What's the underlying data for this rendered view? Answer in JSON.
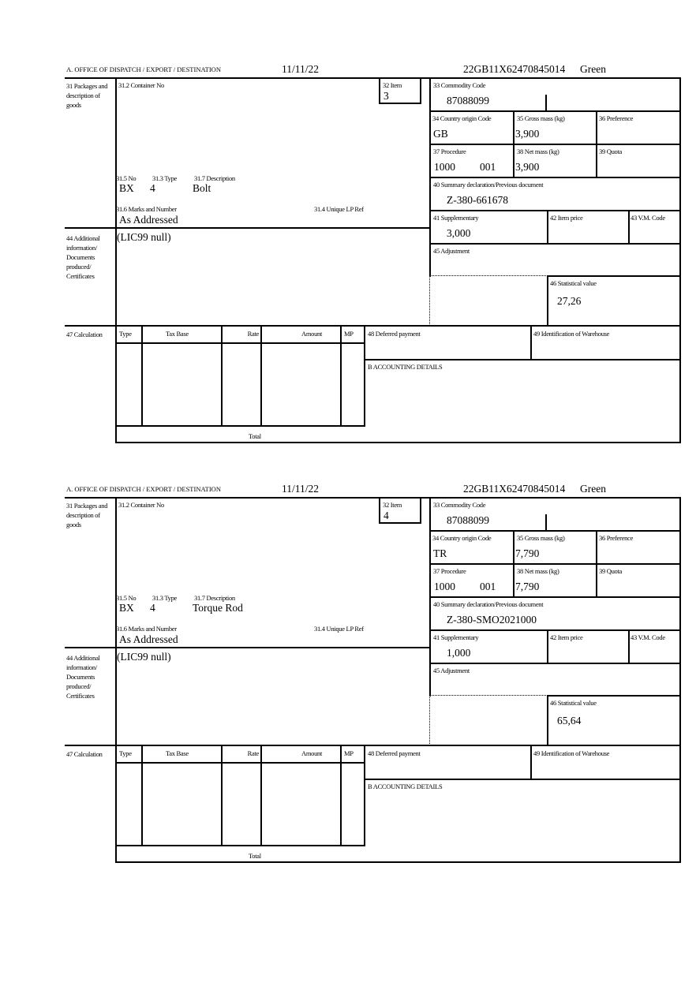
{
  "labels": {
    "office": "A.  OFFICE OF DISPATCH / EXPORT / DESTINATION",
    "packages": "31 Packages and description of goods",
    "container_no": "31.2 Container No",
    "item": "32 Item",
    "no": "31.5 No",
    "type": "31.3 Type",
    "description": "31.7 Description",
    "marks": "31.6 Marks and Number",
    "unique_lp_ref": "31.4 Unique LP Ref",
    "additional": "44 Additional information/ Documents produced/ Certificates",
    "commodity_code": "33 Commodity Code",
    "country_origin": "34 Country origin Code",
    "gross_mass": "35 Gross mass (kg)",
    "preference": "36 Preference",
    "procedure": "37 Procedure",
    "net_mass": "38 Net mass (kg)",
    "quota": "39 Quota",
    "summary_declaration": "40 Summary declaration/Previous document",
    "supplementary": "41 Supplementary",
    "item_price": "42 Item price",
    "vm_code": "43 V.M. Code",
    "adjustment": "45 Adjustment",
    "statistical_value": "46 Statistical value",
    "calculation": "47 Calculation",
    "calc_type": "Type",
    "tax_base": "Tax Base",
    "rate": "Rate",
    "amount": "Amount",
    "mp": "MP",
    "deferred_payment": "48 Deferred payment",
    "warehouse": "49 Identification of Warehouse",
    "accounting": "B ACCOUNTING DETAILS",
    "total": "Total"
  },
  "forms": [
    {
      "date": "11/11/22",
      "reference": "22GB11X62470845014",
      "route": "Green",
      "item": "3",
      "pkg_no": "BX",
      "pkg_type": "4",
      "description": "Bolt",
      "marks": "As Addressed",
      "additional_info": "(LIC99 null)",
      "commodity_code": "87088099",
      "country_origin": "GB",
      "gross_mass": "3,900",
      "procedure": "1000",
      "procedure_add": "001",
      "net_mass": "3,900",
      "previous_document": "Z-380-661678",
      "supplementary": "3,000",
      "statistical_value": "27,26"
    },
    {
      "date": "11/11/22",
      "reference": "22GB11X62470845014",
      "route": "Green",
      "item": "4",
      "pkg_no": "BX",
      "pkg_type": "4",
      "description": "Torque Rod",
      "marks": "As Addressed",
      "additional_info": "(LIC99 null)",
      "commodity_code": "87088099",
      "country_origin": "TR",
      "gross_mass": "7,790",
      "procedure": "1000",
      "procedure_add": "001",
      "net_mass": "7,790",
      "previous_document": "Z-380-SMO2021000",
      "supplementary": "1,000",
      "statistical_value": "65,64"
    }
  ]
}
